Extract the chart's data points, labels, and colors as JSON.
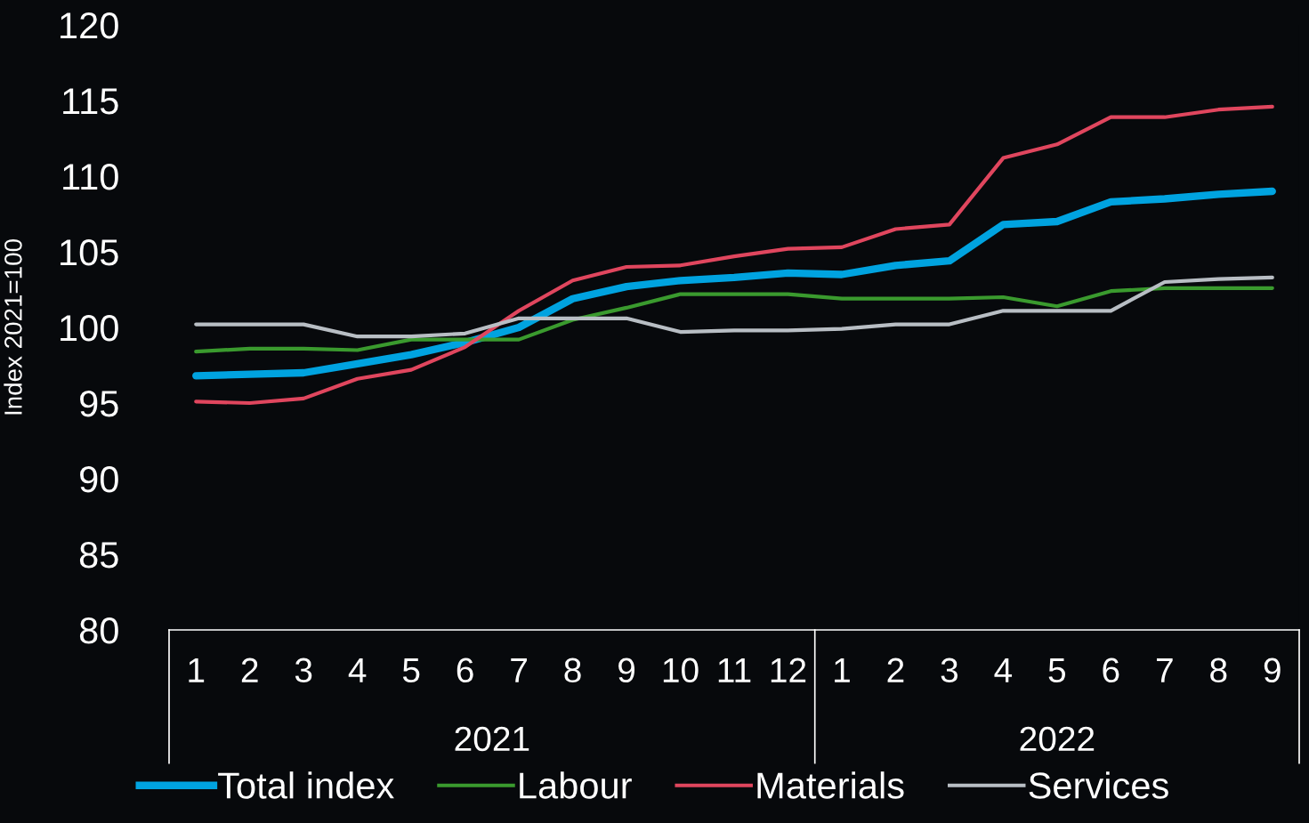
{
  "chart_data": {
    "type": "line",
    "ylabel": "Index 2021=100",
    "categories": [
      "1",
      "2",
      "3",
      "4",
      "5",
      "6",
      "7",
      "8",
      "9",
      "10",
      "11",
      "12",
      "1",
      "2",
      "3",
      "4",
      "5",
      "6",
      "7",
      "8",
      "9"
    ],
    "annotations": [
      "2021",
      "2022"
    ],
    "series": [
      {
        "name": "Total index",
        "color": "#00a3e0",
        "values": [
          96.8,
          96.9,
          97.0,
          97.6,
          98.2,
          99.0,
          100.0,
          101.9,
          102.7,
          103.1,
          103.3,
          103.6,
          103.5,
          104.1,
          104.4,
          106.8,
          107.0,
          108.3,
          108.5,
          108.8,
          109.0
        ]
      },
      {
        "name": "Labour",
        "color": "#3a9a2e",
        "values": [
          98.4,
          98.6,
          98.6,
          98.5,
          99.2,
          99.2,
          99.2,
          100.5,
          101.3,
          102.2,
          102.2,
          102.2,
          101.9,
          101.9,
          101.9,
          102.0,
          101.4,
          102.4,
          102.6,
          102.6,
          102.6
        ]
      },
      {
        "name": "Materials",
        "color": "#e0465e",
        "values": [
          95.1,
          95.0,
          95.3,
          96.6,
          97.2,
          98.7,
          101.1,
          103.1,
          104.0,
          104.1,
          104.7,
          105.2,
          105.3,
          106.5,
          106.8,
          111.2,
          112.1,
          113.9,
          113.9,
          114.4,
          114.6
        ]
      },
      {
        "name": "Services",
        "color": "#b8bec4",
        "values": [
          100.2,
          100.2,
          100.2,
          99.4,
          99.4,
          99.6,
          100.6,
          100.6,
          100.6,
          99.7,
          99.8,
          99.8,
          99.9,
          100.2,
          100.2,
          101.1,
          101.1,
          101.1,
          103.0,
          103.2,
          103.3
        ]
      }
    ],
    "ylim": [
      80,
      120
    ],
    "yticks": [
      80,
      85,
      90,
      95,
      100,
      105,
      110,
      115,
      120
    ],
    "grid": false,
    "legend": "bottom",
    "marker": "none",
    "line_style": "solid"
  }
}
